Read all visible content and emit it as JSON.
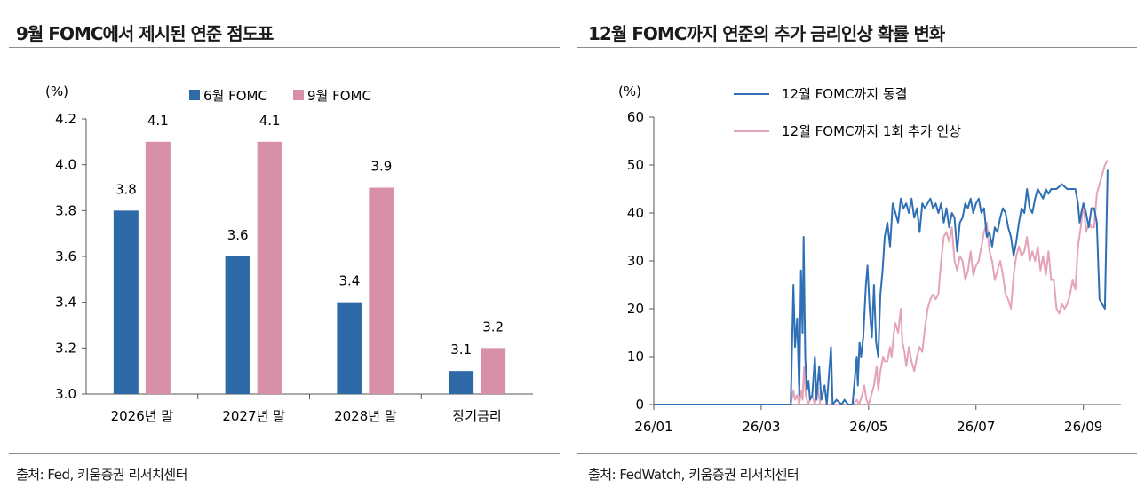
{
  "left": {
    "title": "9월 FOMC에서 제시된 연준 점도표",
    "source": "출처: Fed, 키움증권 리서치센터"
  },
  "right": {
    "title": "12월 FOMC까지 연준의 추가 금리인상 확률 변화",
    "source": "출처: FedWatch, 키움증권 리서치센터"
  },
  "chart_data": [
    {
      "type": "bar",
      "unit_label": "(%)",
      "categories": [
        "2026년 말",
        "2027년 말",
        "2028년 말",
        "장기금리"
      ],
      "series": [
        {
          "name": "6월 FOMC",
          "color": "#2e6aa8",
          "values": [
            3.8,
            3.6,
            3.4,
            3.1
          ],
          "labels": [
            "3.8",
            "3.6",
            "3.4",
            "3.1"
          ]
        },
        {
          "name": "9월 FOMC",
          "color": "#d88fa8",
          "values": [
            4.1,
            4.1,
            3.9,
            3.2
          ],
          "labels": [
            "4.1",
            "4.1",
            "3.9",
            "3.2"
          ]
        }
      ],
      "ylim": [
        3.0,
        4.2
      ],
      "yticks": [
        "3.0",
        "3.2",
        "3.4",
        "3.6",
        "3.8",
        "4.0",
        "4.2"
      ],
      "legend": "top",
      "grid": false
    },
    {
      "type": "line",
      "unit_label": "(%)",
      "ylim": [
        0,
        60
      ],
      "yticks": [
        "0",
        "10",
        "20",
        "30",
        "40",
        "50",
        "60"
      ],
      "xlim": [
        1,
        9.7
      ],
      "xticks": [
        {
          "label": "26/01",
          "value": 1
        },
        {
          "label": "26/03",
          "value": 3
        },
        {
          "label": "26/05",
          "value": 5
        },
        {
          "label": "26/07",
          "value": 7
        },
        {
          "label": "26/09",
          "value": 9
        }
      ],
      "legend": "top-left",
      "grid": false,
      "series": [
        {
          "name": "12월 FOMC까지 동결",
          "color": "#2e6fb5",
          "points": [
            [
              1.0,
              0
            ],
            [
              2.0,
              0
            ],
            [
              3.0,
              0
            ],
            [
              3.55,
              0
            ],
            [
              3.6,
              25
            ],
            [
              3.63,
              12
            ],
            [
              3.67,
              18
            ],
            [
              3.71,
              2
            ],
            [
              3.74,
              28
            ],
            [
              3.77,
              15
            ],
            [
              3.79,
              35
            ],
            [
              3.82,
              10
            ],
            [
              3.85,
              3
            ],
            [
              3.88,
              5
            ],
            [
              3.91,
              1
            ],
            [
              3.95,
              2
            ],
            [
              4.0,
              10
            ],
            [
              4.03,
              1
            ],
            [
              4.08,
              8
            ],
            [
              4.12,
              1
            ],
            [
              4.18,
              4
            ],
            [
              4.22,
              0
            ],
            [
              4.3,
              12
            ],
            [
              4.33,
              0
            ],
            [
              4.4,
              1
            ],
            [
              4.5,
              0
            ],
            [
              4.55,
              1
            ],
            [
              4.62,
              0
            ],
            [
              4.7,
              0
            ],
            [
              4.78,
              10
            ],
            [
              4.8,
              4
            ],
            [
              4.83,
              13
            ],
            [
              4.86,
              10
            ],
            [
              4.9,
              14
            ],
            [
              4.95,
              25
            ],
            [
              4.98,
              29
            ],
            [
              5.02,
              20
            ],
            [
              5.06,
              14
            ],
            [
              5.1,
              25
            ],
            [
              5.14,
              13
            ],
            [
              5.18,
              10
            ],
            [
              5.22,
              23
            ],
            [
              5.26,
              28
            ],
            [
              5.3,
              35
            ],
            [
              5.35,
              38
            ],
            [
              5.4,
              33
            ],
            [
              5.45,
              42
            ],
            [
              5.5,
              40
            ],
            [
              5.55,
              38
            ],
            [
              5.6,
              43
            ],
            [
              5.65,
              41
            ],
            [
              5.7,
              42
            ],
            [
              5.75,
              40
            ],
            [
              5.8,
              43
            ],
            [
              5.85,
              39
            ],
            [
              5.9,
              41
            ],
            [
              5.95,
              36
            ],
            [
              6.0,
              42
            ],
            [
              6.05,
              41
            ],
            [
              6.1,
              42
            ],
            [
              6.15,
              43
            ],
            [
              6.2,
              41
            ],
            [
              6.25,
              42
            ],
            [
              6.3,
              40
            ],
            [
              6.35,
              42
            ],
            [
              6.4,
              38
            ],
            [
              6.45,
              41
            ],
            [
              6.5,
              37
            ],
            [
              6.55,
              40
            ],
            [
              6.6,
              39
            ],
            [
              6.65,
              32
            ],
            [
              6.7,
              38
            ],
            [
              6.75,
              39
            ],
            [
              6.8,
              42
            ],
            [
              6.85,
              41
            ],
            [
              6.9,
              43
            ],
            [
              6.95,
              40
            ],
            [
              7.0,
              42
            ],
            [
              7.05,
              43
            ],
            [
              7.1,
              40
            ],
            [
              7.15,
              41
            ],
            [
              7.2,
              35
            ],
            [
              7.25,
              36
            ],
            [
              7.3,
              33
            ],
            [
              7.35,
              37
            ],
            [
              7.4,
              36
            ],
            [
              7.45,
              39
            ],
            [
              7.5,
              41
            ],
            [
              7.55,
              40
            ],
            [
              7.6,
              37
            ],
            [
              7.65,
              35
            ],
            [
              7.7,
              31
            ],
            [
              7.75,
              34
            ],
            [
              7.8,
              38
            ],
            [
              7.85,
              41
            ],
            [
              7.9,
              40
            ],
            [
              7.95,
              45
            ],
            [
              8.0,
              41
            ],
            [
              8.05,
              40
            ],
            [
              8.1,
              43
            ],
            [
              8.15,
              45
            ],
            [
              8.2,
              44
            ],
            [
              8.25,
              43
            ],
            [
              8.3,
              45
            ],
            [
              8.35,
              44
            ],
            [
              8.4,
              45
            ],
            [
              8.5,
              45
            ],
            [
              8.6,
              46
            ],
            [
              8.7,
              45
            ],
            [
              8.8,
              45
            ],
            [
              8.85,
              45
            ],
            [
              8.9,
              42
            ],
            [
              8.93,
              38
            ],
            [
              8.96,
              40
            ],
            [
              9.0,
              42
            ],
            [
              9.05,
              40
            ],
            [
              9.1,
              37
            ],
            [
              9.15,
              41
            ],
            [
              9.2,
              41
            ],
            [
              9.25,
              38
            ],
            [
              9.3,
              22
            ],
            [
              9.35,
              21
            ],
            [
              9.4,
              20
            ],
            [
              9.45,
              49
            ]
          ]
        },
        {
          "name": "12월 FOMC까지 1회 추가 인상",
          "color": "#e4a3b9",
          "points": [
            [
              1.0,
              0
            ],
            [
              2.0,
              0
            ],
            [
              3.0,
              0
            ],
            [
              3.55,
              0
            ],
            [
              3.6,
              3
            ],
            [
              3.63,
              1
            ],
            [
              3.67,
              2
            ],
            [
              3.71,
              0
            ],
            [
              3.74,
              3
            ],
            [
              3.77,
              1
            ],
            [
              3.8,
              8
            ],
            [
              3.83,
              2
            ],
            [
              3.87,
              0
            ],
            [
              3.95,
              2
            ],
            [
              4.0,
              0
            ],
            [
              4.05,
              4
            ],
            [
              4.1,
              0
            ],
            [
              4.5,
              0
            ],
            [
              4.7,
              0
            ],
            [
              4.78,
              1
            ],
            [
              4.82,
              0
            ],
            [
              4.88,
              2
            ],
            [
              4.92,
              4
            ],
            [
              4.96,
              1
            ],
            [
              5.0,
              0
            ],
            [
              5.05,
              2
            ],
            [
              5.1,
              4
            ],
            [
              5.15,
              8
            ],
            [
              5.18,
              3
            ],
            [
              5.22,
              7
            ],
            [
              5.27,
              10
            ],
            [
              5.3,
              9
            ],
            [
              5.35,
              9
            ],
            [
              5.4,
              12
            ],
            [
              5.43,
              10
            ],
            [
              5.47,
              15
            ],
            [
              5.5,
              17
            ],
            [
              5.55,
              15
            ],
            [
              5.6,
              20
            ],
            [
              5.63,
              13
            ],
            [
              5.67,
              11
            ],
            [
              5.7,
              8
            ],
            [
              5.75,
              12
            ],
            [
              5.8,
              9
            ],
            [
              5.85,
              7
            ],
            [
              5.9,
              10
            ],
            [
              5.95,
              12
            ],
            [
              6.0,
              11
            ],
            [
              6.05,
              16
            ],
            [
              6.1,
              20
            ],
            [
              6.15,
              22
            ],
            [
              6.2,
              23
            ],
            [
              6.25,
              22
            ],
            [
              6.3,
              23
            ],
            [
              6.35,
              30
            ],
            [
              6.4,
              35
            ],
            [
              6.45,
              36
            ],
            [
              6.5,
              34
            ],
            [
              6.55,
              37
            ],
            [
              6.6,
              30
            ],
            [
              6.65,
              28
            ],
            [
              6.7,
              31
            ],
            [
              6.75,
              30
            ],
            [
              6.8,
              26
            ],
            [
              6.85,
              28
            ],
            [
              6.9,
              32
            ],
            [
              6.95,
              27
            ],
            [
              7.0,
              29
            ],
            [
              7.05,
              30
            ],
            [
              7.1,
              33
            ],
            [
              7.15,
              36
            ],
            [
              7.2,
              38
            ],
            [
              7.25,
              32
            ],
            [
              7.3,
              30
            ],
            [
              7.35,
              26
            ],
            [
              7.4,
              28
            ],
            [
              7.45,
              30
            ],
            [
              7.5,
              27
            ],
            [
              7.55,
              23
            ],
            [
              7.6,
              22
            ],
            [
              7.65,
              20
            ],
            [
              7.7,
              27
            ],
            [
              7.75,
              31
            ],
            [
              7.8,
              33
            ],
            [
              7.85,
              31
            ],
            [
              7.9,
              32
            ],
            [
              7.95,
              35
            ],
            [
              8.0,
              30
            ],
            [
              8.05,
              32
            ],
            [
              8.1,
              30
            ],
            [
              8.15,
              33
            ],
            [
              8.2,
              28
            ],
            [
              8.25,
              31
            ],
            [
              8.3,
              27
            ],
            [
              8.35,
              32
            ],
            [
              8.4,
              26
            ],
            [
              8.45,
              26
            ],
            [
              8.5,
              20
            ],
            [
              8.55,
              19
            ],
            [
              8.6,
              21
            ],
            [
              8.65,
              20
            ],
            [
              8.7,
              21
            ],
            [
              8.75,
              23
            ],
            [
              8.8,
              26
            ],
            [
              8.85,
              24
            ],
            [
              8.9,
              33
            ],
            [
              8.95,
              37
            ],
            [
              9.0,
              42
            ],
            [
              9.05,
              36
            ],
            [
              9.1,
              38
            ],
            [
              9.15,
              37
            ],
            [
              9.2,
              37
            ],
            [
              9.25,
              44
            ],
            [
              9.3,
              46
            ],
            [
              9.35,
              48
            ],
            [
              9.4,
              50
            ],
            [
              9.45,
              51
            ]
          ]
        }
      ]
    }
  ]
}
